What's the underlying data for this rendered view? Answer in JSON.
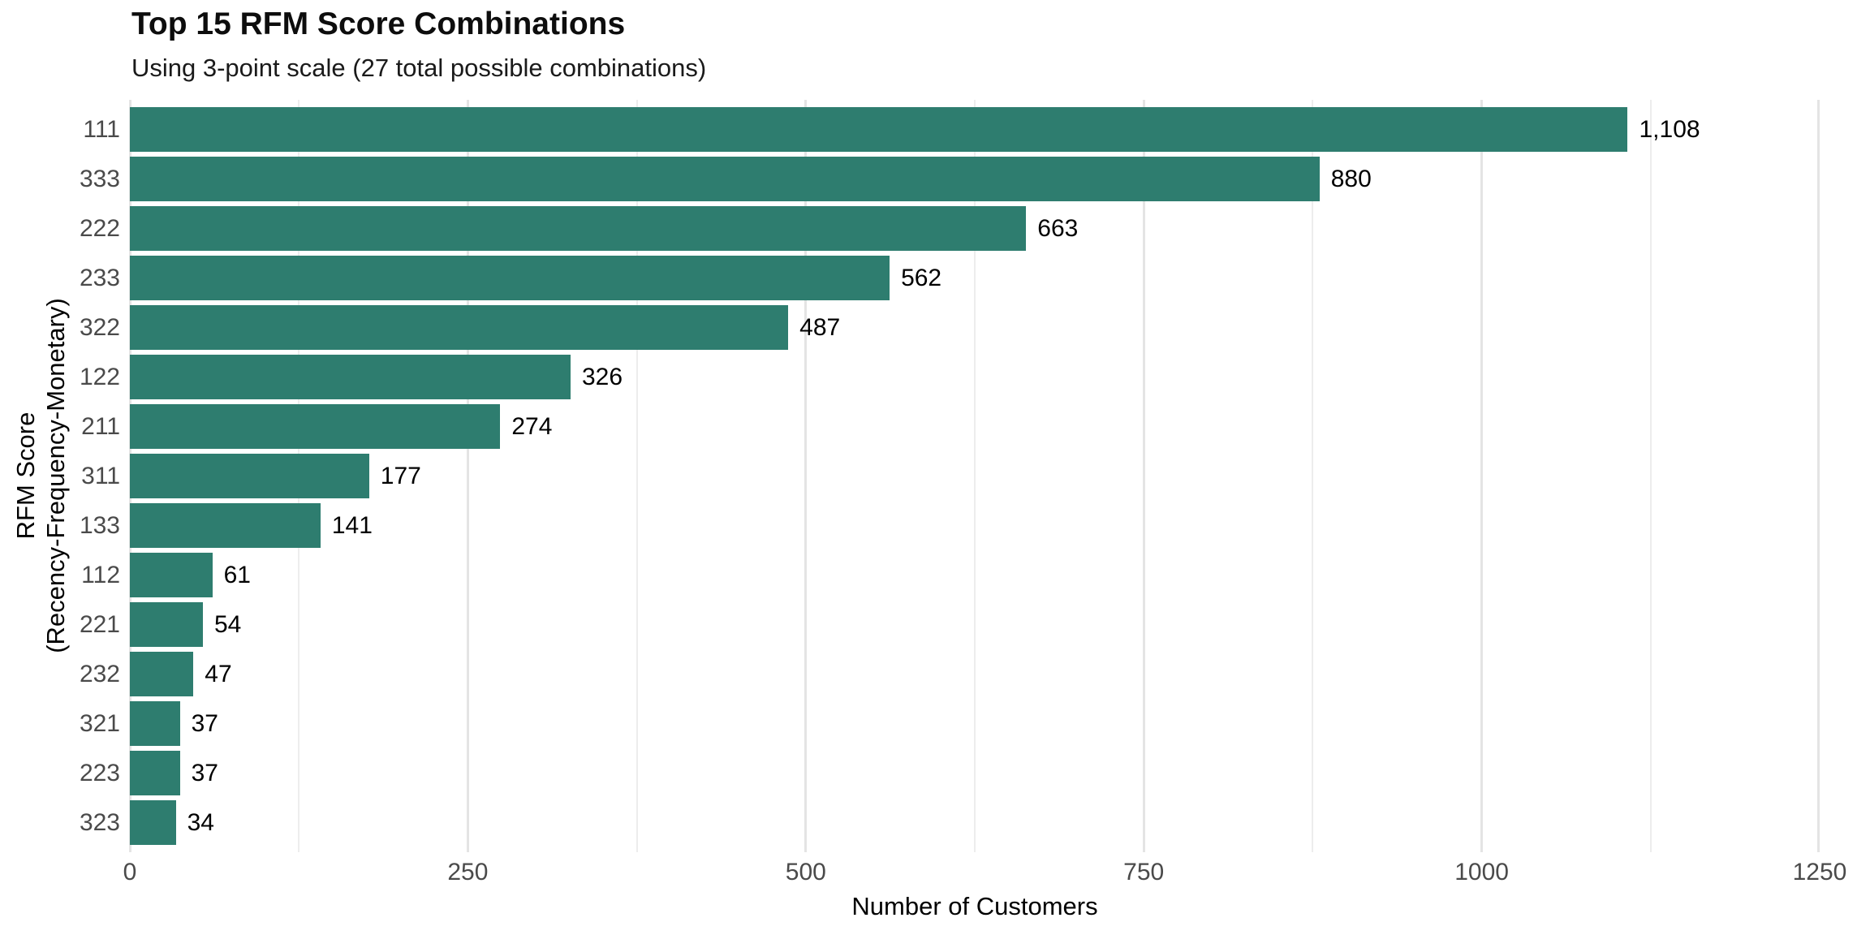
{
  "chart_data": {
    "type": "bar",
    "orientation": "horizontal",
    "title": "Top 15 RFM Score Combinations",
    "subtitle": "Using 3-point scale (27 total possible combinations)",
    "xlabel": "Number of Customers",
    "ylabel_lines": [
      "RFM Score",
      "(Recency-Frequency-Monetary)"
    ],
    "categories": [
      "111",
      "333",
      "222",
      "233",
      "322",
      "122",
      "211",
      "311",
      "133",
      "112",
      "221",
      "232",
      "321",
      "223",
      "323"
    ],
    "values": [
      1108,
      880,
      663,
      562,
      487,
      326,
      274,
      177,
      141,
      61,
      54,
      47,
      37,
      37,
      34
    ],
    "value_labels": [
      "1,108",
      "880",
      "663",
      "562",
      "487",
      "326",
      "274",
      "177",
      "141",
      "61",
      "54",
      "47",
      "37",
      "37",
      "34"
    ],
    "xlim": [
      0,
      1250
    ],
    "x_ticks": [
      0,
      250,
      500,
      750,
      1000,
      1250
    ],
    "x_minor_ticks": [
      125,
      375,
      625,
      875,
      1125
    ],
    "bar_color": "#2E7D6F",
    "grid": true,
    "legend": false,
    "colors": {
      "background": "#FFFFFF",
      "grid_major": "#E4E4E4",
      "grid_minor": "#EDEDED",
      "tick_label": "#4A4A4A",
      "text": "#000000"
    }
  }
}
